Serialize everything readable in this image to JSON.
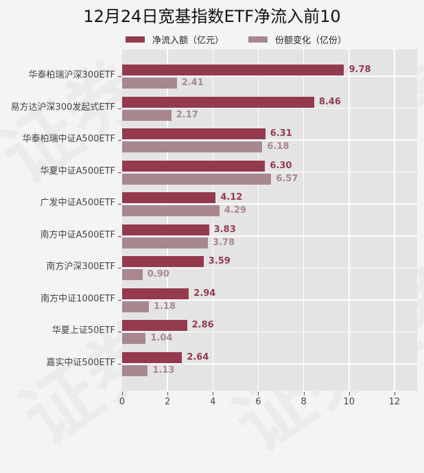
{
  "title": "12月24日宽基指数ETF净流入前10",
  "legend": [
    {
      "label": "净流入额（亿元）",
      "color": "#943a4e"
    },
    {
      "label": "份额变化（亿份）",
      "color": "#a8878f"
    }
  ],
  "watermark": "证券之星",
  "chart_data": {
    "type": "bar",
    "orientation": "horizontal",
    "title": "12月24日宽基指数ETF净流入前10",
    "categories": [
      "华泰柏瑞沪深300ETF",
      "易方达沪深300发起式ETF",
      "华泰柏瑞中证A500ETF",
      "华夏中证A500ETF",
      "广发中证A500ETF",
      "南方中证A500ETF",
      "南方沪深300ETF",
      "南方中证1000ETF",
      "华夏上证50ETF",
      "嘉实中证500ETF"
    ],
    "series": [
      {
        "name": "净流入额（亿元）",
        "color": "#943a4e",
        "values": [
          9.78,
          8.46,
          6.31,
          6.3,
          4.12,
          3.83,
          3.59,
          2.94,
          2.86,
          2.64
        ]
      },
      {
        "name": "份额变化（亿份）",
        "color": "#a8878f",
        "values": [
          2.41,
          2.17,
          6.18,
          6.57,
          4.29,
          3.78,
          0.9,
          1.18,
          1.04,
          1.13
        ]
      }
    ],
    "value_labels": {
      "净流入额（亿元）": [
        "9.78",
        "8.46",
        "6.31",
        "6.30",
        "4.12",
        "3.83",
        "3.59",
        "2.94",
        "2.86",
        "2.64"
      ],
      "份额变化（亿份）": [
        "2.41",
        "2.17",
        "6.18",
        "6.57",
        "4.29",
        "3.78",
        "0.90",
        "1.18",
        "1.04",
        "1.13"
      ]
    },
    "xlabel": "",
    "ylabel": "",
    "xlim": [
      0,
      13
    ],
    "xticks": [
      "0",
      "2",
      "4",
      "6",
      "8",
      "10",
      "12"
    ],
    "grid": true,
    "legend_position": "top"
  }
}
